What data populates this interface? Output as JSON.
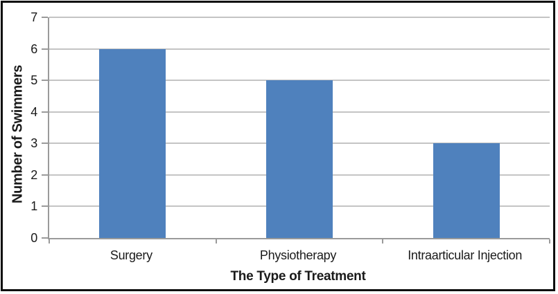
{
  "chart_data": {
    "type": "bar",
    "categories": [
      "Surgery",
      "Physiotherapy",
      "Intraarticular Injection"
    ],
    "values": [
      6,
      5,
      3
    ],
    "title": "",
    "xlabel": "The Type of Treatment",
    "ylabel": "Number of Swimmers",
    "ylim": [
      0,
      7
    ],
    "yticks": [
      0,
      1,
      2,
      3,
      4,
      5,
      6,
      7
    ],
    "grid": true,
    "legend": false,
    "colors": {
      "bar": "#4f81bd",
      "gridline": "#c4c4c4",
      "axis": "#9a9a9a",
      "text": "#1a1a1a",
      "frame_border": "#0d0d0d"
    }
  }
}
